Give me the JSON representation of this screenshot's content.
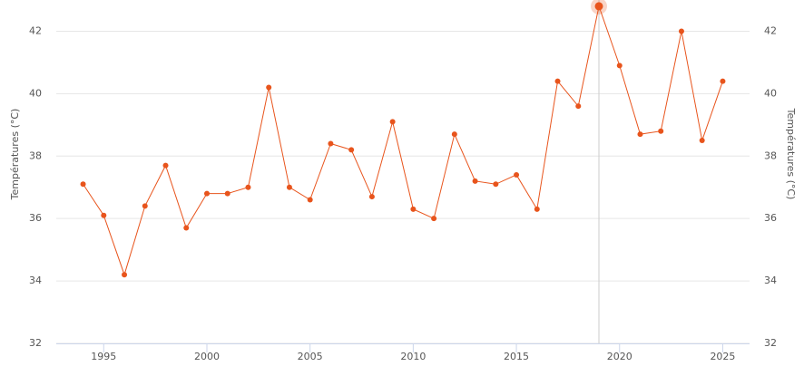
{
  "chart_data": {
    "type": "line",
    "x": [
      1994,
      1995,
      1996,
      1997,
      1998,
      1999,
      2000,
      2001,
      2002,
      2003,
      2004,
      2005,
      2006,
      2007,
      2008,
      2009,
      2010,
      2011,
      2012,
      2013,
      2014,
      2015,
      2016,
      2017,
      2018,
      2019,
      2020,
      2021,
      2022,
      2023,
      2024,
      2025
    ],
    "series": [
      {
        "color": "#e8541c",
        "values": [
          37.1,
          36.1,
          34.2,
          36.4,
          37.7,
          35.7,
          36.8,
          36.8,
          37.0,
          40.2,
          37.0,
          36.6,
          38.4,
          38.2,
          36.7,
          39.1,
          36.3,
          36.0,
          38.7,
          37.2,
          37.1,
          37.4,
          36.3,
          40.4,
          39.6,
          42.8,
          40.9,
          38.7,
          38.8,
          42.0,
          38.5,
          40.4
        ]
      }
    ],
    "xlim": [
      1992.7,
      2026.3
    ],
    "xticks": [
      1995,
      2000,
      2005,
      2010,
      2015,
      2020,
      2025
    ],
    "ylim": [
      32,
      43
    ],
    "yticks": [
      32,
      34,
      36,
      38,
      40,
      42
    ],
    "y2lim": [
      32,
      43
    ],
    "y2ticks": [
      32,
      34,
      36,
      38,
      40,
      42
    ],
    "ylabel": "Températures (°C)",
    "y2label": "Températures (°C)",
    "grid": true,
    "highlight_x": 2019
  }
}
